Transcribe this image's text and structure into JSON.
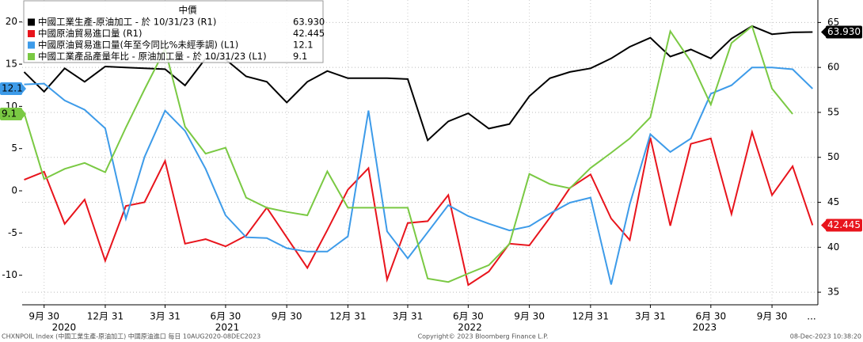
{
  "chart_data": {
    "type": "line",
    "legend_title": "中價",
    "x": [
      "2020-08-31",
      "2020-09-30",
      "2020-10-31",
      "2020-11-30",
      "2020-12-31",
      "2021-01-31",
      "2021-02-28",
      "2021-03-31",
      "2021-04-30",
      "2021-05-31",
      "2021-06-30",
      "2021-07-31",
      "2021-08-31",
      "2021-09-30",
      "2021-10-31",
      "2021-11-30",
      "2021-12-31",
      "2022-01-31",
      "2022-02-28",
      "2022-03-31",
      "2022-04-30",
      "2022-05-31",
      "2022-06-30",
      "2022-07-31",
      "2022-08-31",
      "2022-09-30",
      "2022-10-31",
      "2022-11-30",
      "2022-12-31",
      "2023-01-31",
      "2023-02-28",
      "2023-03-31",
      "2023-04-30",
      "2023-05-31",
      "2023-06-30",
      "2023-07-31",
      "2023-08-31",
      "2023-09-30",
      "2023-10-31",
      "2023-11-30"
    ],
    "series": [
      {
        "name": "中國工業生產-原油加工 - 於 10/31/23 (R1)",
        "color": "#000000",
        "axis": "y2",
        "last_label": "63.930",
        "values": [
          59.5,
          57.3,
          59.9,
          58.4,
          60.1,
          60.0,
          59.9,
          59.8,
          58.0,
          61.0,
          60.9,
          59.0,
          58.4,
          56.1,
          58.4,
          59.6,
          58.8,
          58.8,
          58.8,
          58.7,
          51.9,
          54.0,
          54.9,
          53.2,
          53.7,
          56.8,
          58.8,
          59.5,
          59.9,
          61.0,
          62.3,
          63.3,
          61.2,
          62.0,
          61.0,
          63.2,
          64.6,
          63.7,
          63.9,
          63.93
        ]
      },
      {
        "name": "中國原油貿易進口量 (R1)",
        "color": "#e8141c",
        "axis": "y2",
        "last_label": "42.445",
        "values": [
          47.5,
          48.4,
          42.6,
          45.3,
          38.5,
          44.6,
          45.0,
          49.6,
          40.4,
          40.9,
          40.1,
          41.3,
          44.4,
          41.1,
          37.7,
          41.9,
          46.4,
          48.8,
          36.4,
          42.7,
          42.9,
          45.8,
          35.8,
          37.3,
          40.4,
          40.2,
          43.3,
          46.6,
          48.1,
          43.2,
          40.8,
          52.2,
          42.4,
          51.5,
          52.1,
          43.7,
          52.8,
          45.8,
          49.0,
          42.445
        ]
      },
      {
        "name": "中國原油貿易進口量(年至今同比%未經季調) (L1)",
        "color": "#3d9be9",
        "axis": "y",
        "last_label": "12.1",
        "values": [
          12.6,
          12.7,
          10.7,
          9.6,
          7.4,
          -3.3,
          4.0,
          9.5,
          7.1,
          2.6,
          -2.9,
          -5.5,
          -5.6,
          -6.8,
          -7.2,
          -7.2,
          -5.4,
          9.5,
          -4.8,
          -8.0,
          -4.9,
          -1.7,
          -3.0,
          -3.9,
          -4.7,
          -4.2,
          -2.7,
          -1.4,
          -0.8,
          -11.1,
          -1.6,
          6.7,
          4.6,
          6.2,
          11.5,
          12.5,
          14.6,
          14.6,
          14.4,
          12.1
        ]
      },
      {
        "name": "中國工業產品產量年比 - 原油加工量 - 於 10/31/23 (L1)",
        "color": "#7ac943",
        "axis": "y",
        "last_label": "9.1",
        "values": [
          9.2,
          1.4,
          2.6,
          3.3,
          2.2,
          7.5,
          12.0,
          16.8,
          7.6,
          4.4,
          5.1,
          -0.8,
          -2.0,
          -2.5,
          -2.9,
          2.3,
          -2.0,
          -2.0,
          -2.0,
          -2.0,
          -10.4,
          -10.8,
          -9.8,
          -8.8,
          -6.3,
          2.0,
          0.8,
          0.3,
          2.7,
          4.5,
          6.2,
          8.7,
          18.9,
          15.3,
          10.2,
          17.5,
          19.5,
          12.1,
          9.1,
          null
        ]
      }
    ],
    "xlim": [
      "2020-08-28",
      "2023-12-08"
    ],
    "xticks": [
      {
        "value": "2020-09-30",
        "label": "9月 30"
      },
      {
        "value": "2020-12-31",
        "label": "12月 31"
      },
      {
        "value": "2021-03-31",
        "label": "3月 31"
      },
      {
        "value": "2021-06-30",
        "label": "6月 30"
      },
      {
        "value": "2021-09-30",
        "label": "9月 30"
      },
      {
        "value": "2021-12-31",
        "label": "12月 31"
      },
      {
        "value": "2022-03-31",
        "label": "3月 31"
      },
      {
        "value": "2022-06-30",
        "label": "6月 30"
      },
      {
        "value": "2022-09-30",
        "label": "9月 30"
      },
      {
        "value": "2022-12-31",
        "label": "12月 31"
      },
      {
        "value": "2023-03-31",
        "label": "3月 31"
      },
      {
        "value": "2023-06-30",
        "label": "6月 30"
      },
      {
        "value": "2023-09-30",
        "label": "9月 30"
      }
    ],
    "years": [
      "2020",
      "2021",
      "2022",
      "2023"
    ],
    "x_more": "...",
    "ylim": [
      -13.5,
      22.6
    ],
    "yticks": [
      -10,
      -5,
      0,
      5,
      10,
      15,
      20
    ],
    "y2lim": [
      33.6,
      67.5
    ],
    "y2ticks": [
      35,
      40,
      45,
      50,
      55,
      60,
      65
    ],
    "grid": true,
    "footer_left": "CHXNPOIL Index (中國工業生產-原油加工) 中國原油進口 每日 10AUG2020-08DEC2023",
    "footer_center": "Copyright© 2023 Bloomberg Finance L.P.",
    "footer_right": "08-Dec-2023 10:38:20"
  }
}
